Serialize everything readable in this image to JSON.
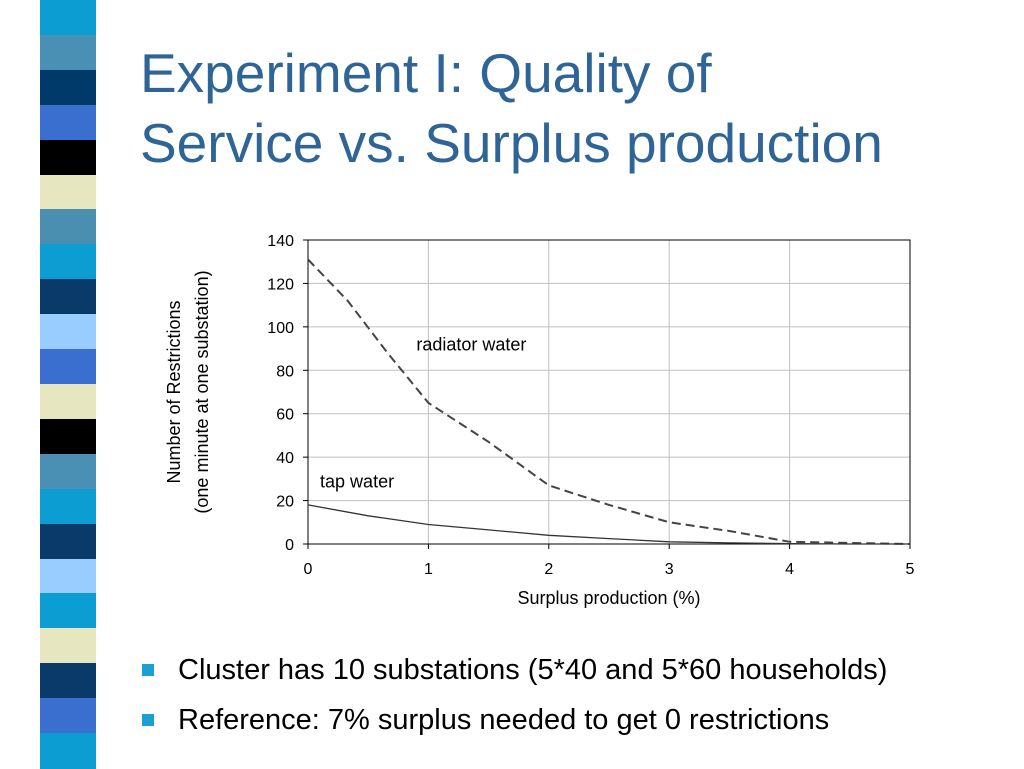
{
  "slide": {
    "title_line1": "Experiment I: Quality of",
    "title_line2": "Service vs. Surplus production",
    "bullets": [
      "Cluster has 10 substations (5*40 and 5*60 households)",
      "Reference: 7% surplus needed to get 0 restrictions"
    ],
    "bullet_color": "#1aa0d2",
    "title_color": "#2f6496",
    "strip_colors": [
      "#0c9ed3",
      "#4a90b4",
      "#003a6b",
      "#3a6fd0",
      "#000000",
      "#e6e6c0",
      "#4a8fb0",
      "#0c9ed3",
      "#0a3a6a",
      "#99ccff",
      "#3a6fd0",
      "#e6e6c0",
      "#000000",
      "#4a90b4",
      "#0c9ed3",
      "#0a3a6a",
      "#99ccff",
      "#0c9ed3",
      "#e6e6c0",
      "#0a3a6a",
      "#3a6fd0",
      "#0c9ed3"
    ]
  },
  "chart_data": {
    "type": "line",
    "xlabel": "Surplus production (%)",
    "ylabel_line1": "Number of Restrictions",
    "ylabel_line2": "(one minute at one substation)",
    "xlim": [
      0,
      5
    ],
    "ylim": [
      0,
      140
    ],
    "x_ticks": [
      "0",
      "1",
      "2",
      "3",
      "4",
      "5"
    ],
    "y_ticks": [
      "0",
      "20",
      "40",
      "60",
      "80",
      "100",
      "120",
      "140"
    ],
    "grid": true,
    "series": [
      {
        "name": "radiator water",
        "style": "dashed",
        "x": [
          0,
          0.33,
          0.66,
          1,
          1.5,
          2,
          2.5,
          3,
          3.5,
          4,
          4.5,
          5
        ],
        "y": [
          131,
          112,
          88,
          65,
          47,
          27,
          18,
          10,
          6,
          1,
          0.5,
          0
        ]
      },
      {
        "name": "tap water",
        "style": "solid",
        "x": [
          0,
          0.5,
          1,
          1.5,
          2,
          2.5,
          3,
          3.5,
          4,
          4.5,
          5
        ],
        "y": [
          18,
          13,
          9,
          6.5,
          4,
          2.5,
          1,
          0.5,
          0.2,
          0,
          0
        ]
      }
    ],
    "annotations": [
      {
        "text": "radiator water",
        "x": 0.9,
        "y": 89
      },
      {
        "text": "tap water",
        "x": 0.1,
        "y": 26
      }
    ]
  }
}
